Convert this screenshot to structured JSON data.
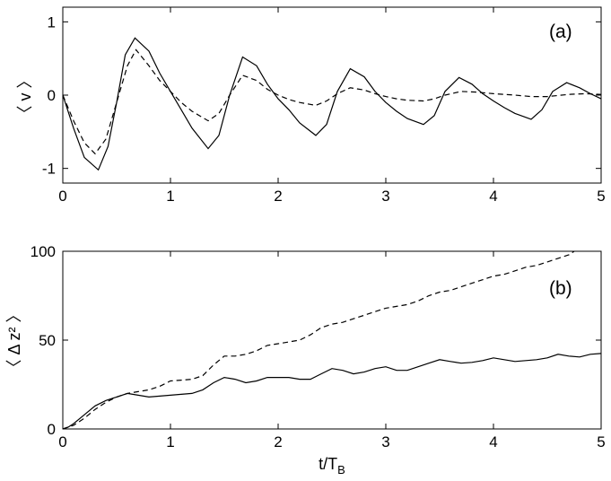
{
  "chart_data": [
    {
      "type": "line",
      "panel_label": "(a)",
      "ylabel": "〈 v 〉",
      "xlabel": "",
      "xlim": [
        0,
        5
      ],
      "ylim": [
        -1.2,
        1.2
      ],
      "xticks": [
        0,
        1,
        2,
        3,
        4,
        5
      ],
      "yticks": [
        -1,
        0,
        1
      ],
      "grid": false,
      "series": [
        {
          "style": "solid",
          "x": [
            0,
            0.1,
            0.2,
            0.33,
            0.42,
            0.5,
            0.58,
            0.67,
            0.8,
            0.9,
            1.0,
            1.1,
            1.2,
            1.35,
            1.45,
            1.55,
            1.67,
            1.8,
            1.9,
            2.0,
            2.1,
            2.2,
            2.35,
            2.45,
            2.55,
            2.67,
            2.8,
            2.9,
            3.0,
            3.1,
            3.2,
            3.35,
            3.45,
            3.55,
            3.68,
            3.8,
            3.9,
            4.0,
            4.1,
            4.2,
            4.35,
            4.45,
            4.55,
            4.68,
            4.8,
            4.9,
            5.0
          ],
          "y": [
            0.0,
            -0.45,
            -0.85,
            -1.02,
            -0.7,
            -0.1,
            0.55,
            0.78,
            0.6,
            0.3,
            0.05,
            -0.2,
            -0.45,
            -0.73,
            -0.55,
            0.0,
            0.52,
            0.4,
            0.15,
            -0.05,
            -0.2,
            -0.38,
            -0.55,
            -0.4,
            0.05,
            0.36,
            0.25,
            0.05,
            -0.1,
            -0.22,
            -0.32,
            -0.4,
            -0.28,
            0.05,
            0.24,
            0.15,
            0.02,
            -0.08,
            -0.17,
            -0.25,
            -0.33,
            -0.2,
            0.05,
            0.17,
            0.1,
            0.02,
            -0.05
          ]
        },
        {
          "style": "dashed",
          "x": [
            0,
            0.1,
            0.2,
            0.3,
            0.4,
            0.5,
            0.6,
            0.68,
            0.8,
            0.9,
            1.0,
            1.1,
            1.2,
            1.35,
            1.45,
            1.55,
            1.67,
            1.8,
            1.9,
            2.0,
            2.1,
            2.2,
            2.35,
            2.45,
            2.55,
            2.67,
            2.8,
            2.9,
            3.0,
            3.1,
            3.2,
            3.35,
            3.45,
            3.55,
            3.7,
            3.85,
            4.0,
            4.2,
            4.35,
            4.5,
            4.7,
            4.85,
            5.0
          ],
          "y": [
            0.0,
            -0.35,
            -0.65,
            -0.8,
            -0.6,
            -0.1,
            0.4,
            0.62,
            0.4,
            0.2,
            0.05,
            -0.1,
            -0.22,
            -0.35,
            -0.25,
            0.0,
            0.27,
            0.2,
            0.08,
            0.0,
            -0.06,
            -0.1,
            -0.14,
            -0.08,
            0.02,
            0.1,
            0.07,
            0.02,
            -0.02,
            -0.05,
            -0.07,
            -0.08,
            -0.05,
            0.0,
            0.05,
            0.04,
            0.02,
            0.0,
            -0.02,
            -0.02,
            0.01,
            0.02,
            0.01
          ]
        }
      ]
    },
    {
      "type": "line",
      "panel_label": "(b)",
      "ylabel": "〈 Δ z² 〉",
      "xlabel": "t/T_B",
      "xlim": [
        0,
        5
      ],
      "ylim": [
        0,
        100
      ],
      "xticks": [
        0,
        1,
        2,
        3,
        4,
        5
      ],
      "yticks": [
        0,
        50,
        100
      ],
      "grid": false,
      "series": [
        {
          "style": "solid",
          "x": [
            0,
            0.05,
            0.1,
            0.2,
            0.3,
            0.4,
            0.5,
            0.6,
            0.7,
            0.8,
            0.9,
            1.0,
            1.1,
            1.2,
            1.3,
            1.4,
            1.5,
            1.6,
            1.7,
            1.8,
            1.9,
            2.0,
            2.1,
            2.2,
            2.3,
            2.4,
            2.5,
            2.6,
            2.7,
            2.8,
            2.9,
            3.0,
            3.1,
            3.2,
            3.3,
            3.4,
            3.5,
            3.6,
            3.7,
            3.8,
            3.9,
            4.0,
            4.1,
            4.2,
            4.3,
            4.4,
            4.5,
            4.6,
            4.7,
            4.8,
            4.9,
            5.0
          ],
          "y": [
            0,
            1,
            3,
            8,
            13,
            16,
            18,
            20,
            19,
            18,
            18.5,
            19,
            19.5,
            20,
            22,
            26,
            29,
            28,
            26,
            27,
            29,
            29,
            29,
            28,
            28,
            31,
            34,
            33,
            31,
            32,
            34,
            35,
            33,
            33,
            35,
            37,
            39,
            38,
            37,
            37.5,
            38.5,
            40,
            39,
            38,
            38.5,
            39,
            40,
            42,
            41,
            40.5,
            42,
            42.5
          ]
        },
        {
          "style": "dashed",
          "x": [
            0,
            0.1,
            0.2,
            0.3,
            0.4,
            0.5,
            0.6,
            0.7,
            0.8,
            0.9,
            1.0,
            1.1,
            1.2,
            1.3,
            1.4,
            1.5,
            1.6,
            1.7,
            1.8,
            1.9,
            2.0,
            2.1,
            2.2,
            2.3,
            2.4,
            2.5,
            2.6,
            2.7,
            2.8,
            2.9,
            3.0,
            3.1,
            3.2,
            3.3,
            3.4,
            3.5,
            3.6,
            3.7,
            3.8,
            3.9,
            4.0,
            4.1,
            4.2,
            4.3,
            4.4,
            4.5,
            4.6,
            4.7,
            4.75
          ],
          "y": [
            0,
            2,
            6,
            11,
            15,
            18,
            20,
            21,
            22,
            24,
            27,
            27.5,
            28,
            30,
            36,
            41,
            41,
            42,
            44,
            47,
            48,
            49,
            50,
            53,
            57,
            59,
            60,
            62,
            64,
            66,
            68,
            69,
            70,
            72,
            75,
            77,
            78,
            80,
            82,
            84,
            86,
            87,
            89,
            91,
            92,
            94,
            96,
            98,
            100
          ]
        }
      ]
    }
  ]
}
